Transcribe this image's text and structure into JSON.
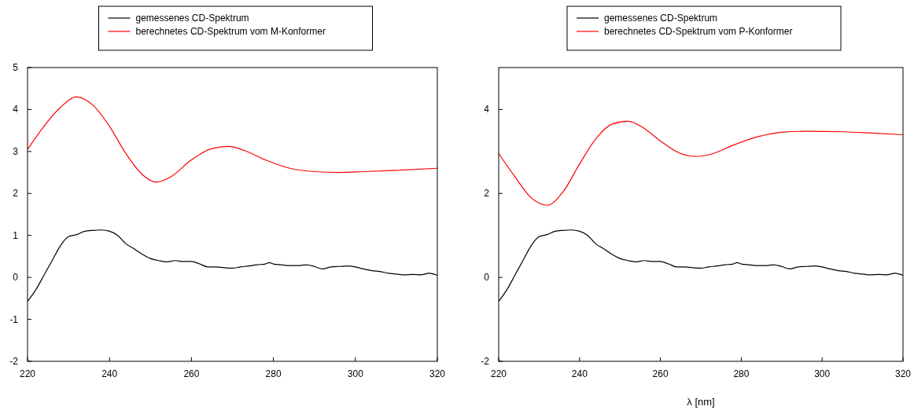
{
  "chart_data": [
    {
      "type": "line",
      "xlim": [
        220,
        320
      ],
      "xticks": [
        220,
        240,
        260,
        280,
        300,
        320
      ],
      "ylim": [
        -2,
        5
      ],
      "yticks": [
        -2,
        -1,
        0,
        1,
        2,
        3,
        4,
        5
      ],
      "legend": "top",
      "grid": false,
      "series": [
        {
          "name": "gemessenes CD-Spektrum",
          "color": "#000000",
          "x": [
            220,
            222,
            224,
            226,
            228,
            230,
            232,
            234,
            236,
            238,
            240,
            242,
            244,
            246,
            248,
            250,
            252,
            254,
            256,
            258,
            260,
            262,
            264,
            266,
            268,
            270,
            272,
            274,
            276,
            278,
            279,
            280,
            282,
            284,
            286,
            288,
            290,
            292,
            294,
            296,
            298,
            300,
            302,
            304,
            306,
            308,
            310,
            312,
            314,
            316,
            318,
            320
          ],
          "values": [
            -0.57,
            -0.3,
            0.05,
            0.4,
            0.75,
            0.97,
            1.02,
            1.1,
            1.12,
            1.13,
            1.1,
            1.0,
            0.8,
            0.68,
            0.55,
            0.45,
            0.4,
            0.37,
            0.4,
            0.38,
            0.38,
            0.32,
            0.25,
            0.25,
            0.23,
            0.22,
            0.25,
            0.27,
            0.3,
            0.32,
            0.35,
            0.32,
            0.3,
            0.28,
            0.28,
            0.3,
            0.26,
            0.2,
            0.25,
            0.26,
            0.27,
            0.25,
            0.2,
            0.16,
            0.14,
            0.1,
            0.08,
            0.06,
            0.07,
            0.06,
            0.1,
            0.05
          ]
        },
        {
          "name": "berechnetes CD-Spektrum vom M-Konformer",
          "color": "#ff0000",
          "x": [
            220,
            224,
            228,
            232,
            236,
            240,
            244,
            248,
            251.5,
            255,
            260,
            265,
            269,
            273,
            278,
            284,
            290,
            296,
            302,
            310,
            320
          ],
          "values": [
            3.05,
            3.6,
            4.05,
            4.3,
            4.1,
            3.6,
            2.95,
            2.45,
            2.27,
            2.4,
            2.8,
            3.07,
            3.12,
            3.02,
            2.8,
            2.6,
            2.52,
            2.5,
            2.52,
            2.55,
            2.6
          ]
        }
      ]
    },
    {
      "type": "line",
      "xlabel": "λ [nm]",
      "xlim": [
        220,
        320
      ],
      "xticks": [
        220,
        240,
        260,
        280,
        300,
        320
      ],
      "ylim": [
        -2,
        5
      ],
      "yticks": [
        -2,
        0,
        2,
        4
      ],
      "legend": "top",
      "grid": false,
      "series": [
        {
          "name": "gemessenes CD-Spektrum",
          "color": "#000000",
          "x": [
            220,
            222,
            224,
            226,
            228,
            230,
            232,
            234,
            236,
            238,
            240,
            242,
            244,
            246,
            248,
            250,
            252,
            254,
            256,
            258,
            260,
            262,
            264,
            266,
            268,
            270,
            272,
            274,
            276,
            278,
            279,
            280,
            282,
            284,
            286,
            288,
            290,
            292,
            294,
            296,
            298,
            300,
            302,
            304,
            306,
            308,
            310,
            312,
            314,
            316,
            318,
            320
          ],
          "values": [
            -0.57,
            -0.3,
            0.05,
            0.4,
            0.75,
            0.97,
            1.02,
            1.1,
            1.12,
            1.13,
            1.1,
            1.0,
            0.8,
            0.68,
            0.55,
            0.45,
            0.4,
            0.37,
            0.4,
            0.38,
            0.38,
            0.32,
            0.25,
            0.25,
            0.23,
            0.22,
            0.25,
            0.27,
            0.3,
            0.32,
            0.35,
            0.32,
            0.3,
            0.28,
            0.28,
            0.3,
            0.26,
            0.2,
            0.25,
            0.26,
            0.27,
            0.25,
            0.2,
            0.16,
            0.14,
            0.1,
            0.08,
            0.06,
            0.07,
            0.06,
            0.1,
            0.05
          ]
        },
        {
          "name": "berechnetes CD-Spektrum vom P-Konformer",
          "color": "#ff0000",
          "x": [
            220,
            224,
            228,
            232,
            236,
            240,
            244,
            248,
            252,
            256,
            260,
            265,
            269,
            273,
            278,
            284,
            290,
            296,
            305,
            312,
            320
          ],
          "values": [
            2.95,
            2.4,
            1.9,
            1.72,
            2.05,
            2.7,
            3.3,
            3.65,
            3.72,
            3.55,
            3.25,
            2.95,
            2.88,
            2.95,
            3.15,
            3.35,
            3.46,
            3.48,
            3.47,
            3.44,
            3.4
          ]
        }
      ]
    }
  ]
}
